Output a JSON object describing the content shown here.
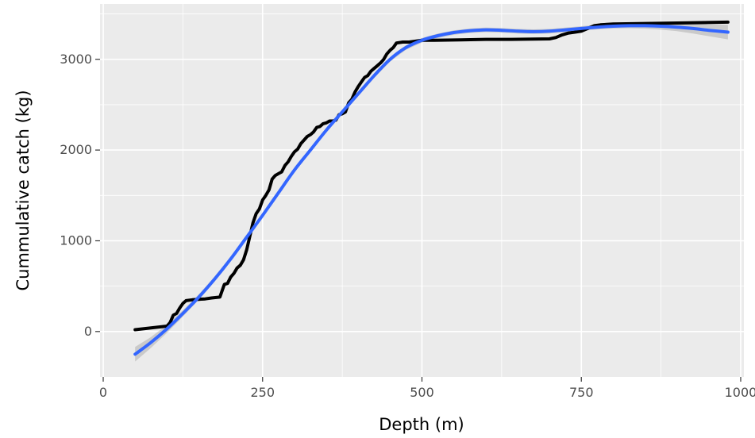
{
  "chart_data": {
    "type": "line",
    "xlabel": "Depth (m)",
    "ylabel": "Cummulative catch (kg)",
    "xlim": [
      -5,
      1005
    ],
    "ylim": [
      -500,
      3610
    ],
    "x_ticks": [
      0,
      250,
      500,
      750,
      1000
    ],
    "y_ticks": [
      0,
      1000,
      2000,
      3000
    ],
    "x_tick_labels": [
      "0",
      "250",
      "500",
      "750",
      "1000"
    ],
    "y_tick_labels": [
      "0",
      "1000",
      "2000",
      "3000"
    ],
    "grid": true,
    "panel_background": "#ebebeb",
    "series": [
      {
        "kind": "cumulative",
        "color": "#000000",
        "x": [
          50,
          100,
          105,
          110,
          115,
          120,
          125,
          130,
          140,
          150,
          160,
          170,
          183,
          187,
          190,
          195,
          200,
          205,
          210,
          215,
          220,
          225,
          230,
          235,
          240,
          245,
          250,
          255,
          260,
          265,
          270,
          275,
          280,
          285,
          290,
          295,
          300,
          305,
          310,
          315,
          320,
          325,
          330,
          335,
          340,
          345,
          350,
          355,
          360,
          365,
          370,
          375,
          380,
          385,
          390,
          395,
          400,
          405,
          410,
          415,
          420,
          425,
          430,
          435,
          440,
          445,
          450,
          455,
          460,
          470,
          480,
          490,
          500,
          520,
          560,
          600,
          640,
          700,
          710,
          720,
          730,
          740,
          750,
          760,
          770,
          780,
          800,
          850,
          900,
          980
        ],
        "y": [
          20,
          60,
          100,
          180,
          200,
          260,
          310,
          340,
          350,
          355,
          360,
          370,
          380,
          460,
          520,
          530,
          600,
          640,
          700,
          730,
          790,
          900,
          1050,
          1200,
          1300,
          1350,
          1450,
          1500,
          1560,
          1680,
          1720,
          1740,
          1760,
          1830,
          1870,
          1930,
          1980,
          2010,
          2070,
          2110,
          2150,
          2170,
          2200,
          2250,
          2260,
          2290,
          2300,
          2320,
          2320,
          2330,
          2390,
          2400,
          2420,
          2520,
          2560,
          2640,
          2700,
          2750,
          2800,
          2820,
          2870,
          2900,
          2930,
          2960,
          3000,
          3060,
          3100,
          3130,
          3180,
          3190,
          3190,
          3200,
          3210,
          3210,
          3215,
          3220,
          3220,
          3225,
          3240,
          3270,
          3290,
          3300,
          3310,
          3340,
          3370,
          3380,
          3390,
          3395,
          3400,
          3410
        ]
      },
      {
        "kind": "smooth",
        "color": "#3366ff",
        "x": [
          50,
          75,
          100,
          125,
          150,
          175,
          200,
          225,
          250,
          275,
          300,
          325,
          350,
          375,
          400,
          425,
          450,
          475,
          500,
          525,
          550,
          575,
          600,
          625,
          650,
          675,
          700,
          725,
          750,
          775,
          800,
          825,
          850,
          875,
          900,
          925,
          950,
          980
        ],
        "y": [
          -250,
          -120,
          30,
          200,
          380,
          580,
          800,
          1040,
          1280,
          1530,
          1780,
          2000,
          2220,
          2420,
          2620,
          2820,
          3000,
          3130,
          3210,
          3260,
          3295,
          3315,
          3325,
          3320,
          3310,
          3305,
          3310,
          3325,
          3340,
          3355,
          3365,
          3370,
          3370,
          3365,
          3355,
          3340,
          3320,
          3300
        ],
        "band_halfwidth": [
          80,
          60,
          45,
          35,
          30,
          28,
          25,
          25,
          25,
          25,
          25,
          25,
          25,
          25,
          25,
          25,
          25,
          25,
          25,
          25,
          25,
          25,
          25,
          25,
          25,
          25,
          25,
          25,
          25,
          25,
          25,
          28,
          32,
          38,
          45,
          55,
          65,
          80
        ]
      }
    ]
  }
}
